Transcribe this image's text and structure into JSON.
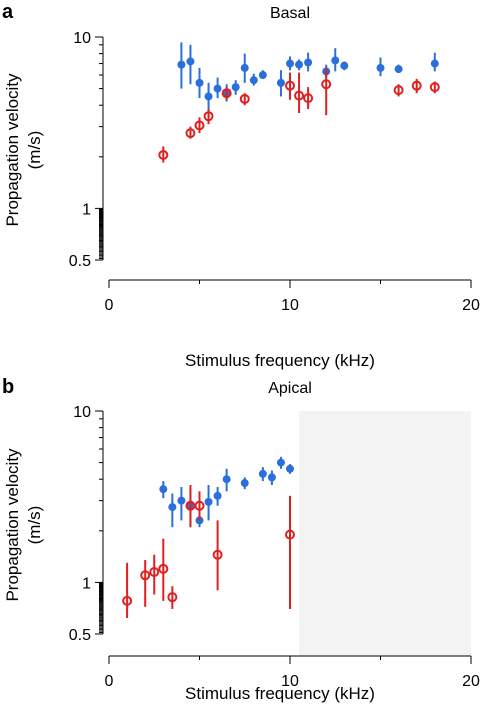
{
  "chart_data": [
    {
      "id": "basal",
      "type": "scatter",
      "panel_label": "a",
      "title": "Basal",
      "xlabel": "Stimulus frequency (kHz)",
      "ylabel_line1": "Propagation velocity",
      "ylabel_line2": "(m/s)",
      "xlim": [
        0,
        20
      ],
      "ylim": [
        0.5,
        10
      ],
      "yscale": "log",
      "xticks": [
        0,
        10,
        20
      ],
      "xtick_labels": [
        "0",
        "10",
        "20"
      ],
      "yticks": [
        0.5,
        1,
        10
      ],
      "ytick_labels": [
        "0.5",
        "1",
        "10"
      ],
      "grid": false,
      "shaded_region": null,
      "series": [
        {
          "marker": "filled-circle",
          "color": "#2a6fdb",
          "points": [
            {
              "x": 4.0,
              "y": 6.9,
              "lo": 5.0,
              "hi": 9.3
            },
            {
              "x": 4.5,
              "y": 7.2,
              "lo": 5.3,
              "hi": 9.0
            },
            {
              "x": 5.0,
              "y": 5.4,
              "lo": 4.4,
              "hi": 6.6
            },
            {
              "x": 5.5,
              "y": 4.5,
              "lo": 3.6,
              "hi": 5.4
            },
            {
              "x": 6.0,
              "y": 5.0,
              "lo": 4.4,
              "hi": 5.8
            },
            {
              "x": 6.5,
              "y": 4.7,
              "lo": 4.2,
              "hi": 5.3
            },
            {
              "x": 7.0,
              "y": 5.1,
              "lo": 4.6,
              "hi": 5.6
            },
            {
              "x": 7.5,
              "y": 6.6,
              "lo": 5.4,
              "hi": 8.0
            },
            {
              "x": 8.0,
              "y": 5.6,
              "lo": 5.2,
              "hi": 6.1
            },
            {
              "x": 8.5,
              "y": 6.0,
              "lo": 5.7,
              "hi": 6.4
            },
            {
              "x": 9.5,
              "y": 5.4,
              "lo": 4.5,
              "hi": 6.4
            },
            {
              "x": 10.0,
              "y": 7.0,
              "lo": 6.4,
              "hi": 7.7
            },
            {
              "x": 10.5,
              "y": 6.9,
              "lo": 6.4,
              "hi": 7.4
            },
            {
              "x": 11.0,
              "y": 7.1,
              "lo": 6.3,
              "hi": 8.1
            },
            {
              "x": 12.0,
              "y": 6.3,
              "lo": 5.8,
              "hi": 6.9
            },
            {
              "x": 12.5,
              "y": 7.3,
              "lo": 6.3,
              "hi": 8.6
            },
            {
              "x": 13.0,
              "y": 6.8,
              "lo": 6.4,
              "hi": 7.2
            },
            {
              "x": 15.0,
              "y": 6.6,
              "lo": 5.9,
              "hi": 7.6
            },
            {
              "x": 16.0,
              "y": 6.5,
              "lo": 6.2,
              "hi": 6.9
            },
            {
              "x": 18.0,
              "y": 7.0,
              "lo": 6.3,
              "hi": 8.1
            }
          ]
        },
        {
          "marker": "open-circle",
          "color": "#e02020",
          "points": [
            {
              "x": 3.0,
              "y": 2.05,
              "lo": 1.85,
              "hi": 2.3
            },
            {
              "x": 4.5,
              "y": 2.75,
              "lo": 2.55,
              "hi": 3.0
            },
            {
              "x": 5.0,
              "y": 3.05,
              "lo": 2.75,
              "hi": 3.4
            },
            {
              "x": 5.5,
              "y": 3.45,
              "lo": 3.1,
              "hi": 3.8
            },
            {
              "x": 6.5,
              "y": 4.7,
              "lo": 4.3,
              "hi": 5.1
            },
            {
              "x": 7.5,
              "y": 4.35,
              "lo": 4.0,
              "hi": 4.7
            },
            {
              "x": 10.0,
              "y": 5.2,
              "lo": 4.3,
              "hi": 6.2
            },
            {
              "x": 10.5,
              "y": 4.55,
              "lo": 3.6,
              "hi": 6.2
            },
            {
              "x": 11.0,
              "y": 4.4,
              "lo": 3.8,
              "hi": 5.1
            },
            {
              "x": 12.0,
              "y": 5.3,
              "lo": 3.5,
              "hi": 6.6
            },
            {
              "x": 16.0,
              "y": 4.9,
              "lo": 4.5,
              "hi": 5.3
            },
            {
              "x": 17.0,
              "y": 5.2,
              "lo": 4.7,
              "hi": 5.7
            },
            {
              "x": 18.0,
              "y": 5.1,
              "lo": 4.7,
              "hi": 5.5
            }
          ]
        }
      ]
    },
    {
      "id": "apical",
      "type": "scatter",
      "panel_label": "b",
      "title": "Apical",
      "xlabel": "Stimulus frequency (kHz)",
      "ylabel_line1": "Propagation velocity",
      "ylabel_line2": "(m/s)",
      "xlim": [
        0,
        20
      ],
      "ylim": [
        0.5,
        10
      ],
      "yscale": "log",
      "xticks": [
        0,
        10,
        20
      ],
      "xtick_labels": [
        "0",
        "10",
        "20"
      ],
      "yticks": [
        0.5,
        1,
        10
      ],
      "ytick_labels": [
        "0.5",
        "1",
        "10"
      ],
      "grid": false,
      "shaded_region": {
        "x0": 10.5,
        "x1": 20,
        "color": "#f3f3f3"
      },
      "series": [
        {
          "marker": "filled-circle",
          "color": "#2a6fdb",
          "points": [
            {
              "x": 3.0,
              "y": 3.5,
              "lo": 3.1,
              "hi": 3.9
            },
            {
              "x": 3.5,
              "y": 2.75,
              "lo": 2.1,
              "hi": 3.3
            },
            {
              "x": 4.0,
              "y": 3.0,
              "lo": 2.3,
              "hi": 3.6
            },
            {
              "x": 4.5,
              "y": 2.8,
              "lo": 2.1,
              "hi": 3.5
            },
            {
              "x": 5.0,
              "y": 2.3,
              "lo": 2.1,
              "hi": 2.5
            },
            {
              "x": 5.5,
              "y": 2.95,
              "lo": 2.3,
              "hi": 3.7
            },
            {
              "x": 6.0,
              "y": 3.2,
              "lo": 2.8,
              "hi": 3.6
            },
            {
              "x": 6.5,
              "y": 4.0,
              "lo": 3.4,
              "hi": 4.6
            },
            {
              "x": 7.5,
              "y": 3.8,
              "lo": 3.5,
              "hi": 4.1
            },
            {
              "x": 8.5,
              "y": 4.3,
              "lo": 3.9,
              "hi": 4.7
            },
            {
              "x": 9.0,
              "y": 4.1,
              "lo": 3.7,
              "hi": 4.5
            },
            {
              "x": 9.5,
              "y": 5.0,
              "lo": 4.6,
              "hi": 5.4
            },
            {
              "x": 10.0,
              "y": 4.6,
              "lo": 4.3,
              "hi": 4.9
            }
          ]
        },
        {
          "marker": "open-circle",
          "color": "#e02020",
          "points": [
            {
              "x": 1.0,
              "y": 0.78,
              "lo": 0.62,
              "hi": 1.3
            },
            {
              "x": 2.0,
              "y": 1.1,
              "lo": 0.72,
              "hi": 1.35
            },
            {
              "x": 2.5,
              "y": 1.15,
              "lo": 0.85,
              "hi": 1.45
            },
            {
              "x": 3.0,
              "y": 1.2,
              "lo": 0.78,
              "hi": 1.8
            },
            {
              "x": 3.5,
              "y": 0.82,
              "lo": 0.7,
              "hi": 0.95
            },
            {
              "x": 4.5,
              "y": 2.8,
              "lo": 2.1,
              "hi": 3.7
            },
            {
              "x": 5.0,
              "y": 2.8,
              "lo": 2.3,
              "hi": 3.4
            },
            {
              "x": 6.0,
              "y": 1.45,
              "lo": 0.9,
              "hi": 2.3
            },
            {
              "x": 10.0,
              "y": 1.9,
              "lo": 0.7,
              "hi": 3.2
            }
          ]
        }
      ]
    }
  ]
}
